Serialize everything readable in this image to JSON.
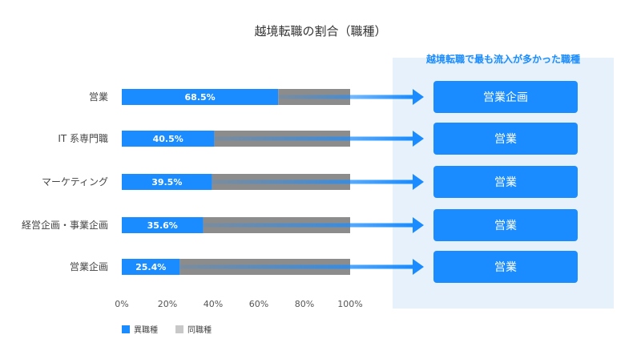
{
  "chart_data": {
    "type": "bar",
    "orientation": "horizontal",
    "stacked": true,
    "title": "越境転職の割合（職種）",
    "categories": [
      "営業",
      "IT 系専門職",
      "マーケティング",
      "経営企画・事業企画",
      "営業企画"
    ],
    "series": [
      {
        "name": "異職種",
        "values": [
          68.5,
          40.5,
          39.5,
          35.6,
          25.4
        ],
        "color": "#1a8cff"
      },
      {
        "name": "同職種",
        "values": [
          31.5,
          59.5,
          60.5,
          64.4,
          74.6
        ],
        "color": "#8c8c8c"
      }
    ],
    "value_labels": [
      "68.5%",
      "40.5%",
      "39.5%",
      "35.6%",
      "25.4%"
    ],
    "xlim": [
      0,
      100
    ],
    "xticks": [
      "0%",
      "20%",
      "40%",
      "60%",
      "80%",
      "100%"
    ],
    "legend_position": "bottom-left",
    "grid": false
  },
  "side_panel": {
    "title": "越境転職で最も流入が多かった職種",
    "items": [
      "営業企画",
      "営業",
      "営業",
      "営業",
      "営業"
    ],
    "background": "#e6f1fc",
    "box_color": "#1a8cff"
  },
  "legend": {
    "items": [
      {
        "label": "異職種",
        "color": "#1a8cff"
      },
      {
        "label": "同職種",
        "color": "#c8c8c8"
      }
    ]
  }
}
